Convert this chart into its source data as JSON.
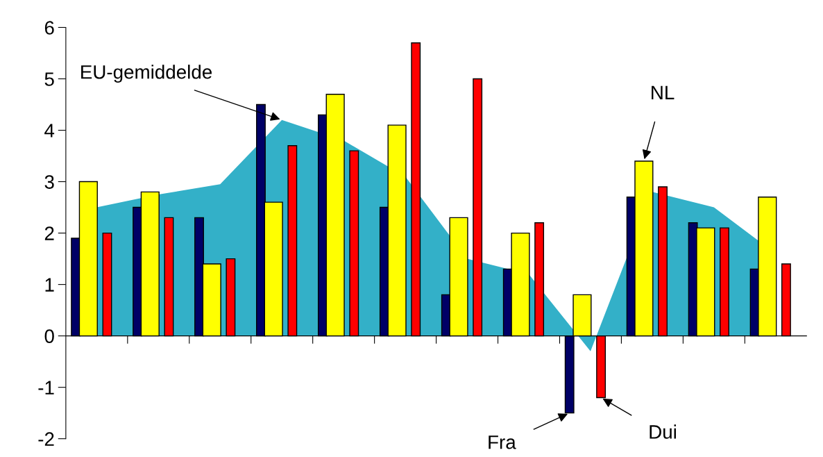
{
  "chart_data": {
    "type": "bar",
    "categories": [
      null,
      null,
      null,
      null,
      null,
      null,
      null,
      null,
      null,
      null,
      null,
      null
    ],
    "series": [
      {
        "name": "EU-gemiddelde",
        "type": "area",
        "color": "#33b0c8",
        "values": [
          2.5,
          2.75,
          2.95,
          4.2,
          3.8,
          3.1,
          1.5,
          1.2,
          -0.3,
          2.8,
          2.5,
          1.6
        ]
      },
      {
        "name": "Fra",
        "color": "#000066",
        "values": [
          1.9,
          2.5,
          2.3,
          4.5,
          4.3,
          2.5,
          0.8,
          1.3,
          -1.5,
          2.7,
          2.2,
          1.3
        ]
      },
      {
        "name": "Dui",
        "color": "#ff0000",
        "values": [
          2.0,
          2.3,
          1.5,
          3.7,
          3.6,
          5.7,
          5.0,
          2.2,
          -1.2,
          2.9,
          2.1,
          1.4
        ]
      },
      {
        "name": "NL",
        "color": "#ffff00",
        "values": [
          3.0,
          2.8,
          1.4,
          2.6,
          4.7,
          4.1,
          2.3,
          2.0,
          0.8,
          3.4,
          2.1,
          2.7
        ]
      }
    ],
    "ylim": [
      -2,
      6
    ],
    "yticks": [
      -2,
      -1,
      0,
      1,
      2,
      3,
      4,
      5,
      6
    ],
    "tick_labels": "y",
    "legend": false
  }
}
